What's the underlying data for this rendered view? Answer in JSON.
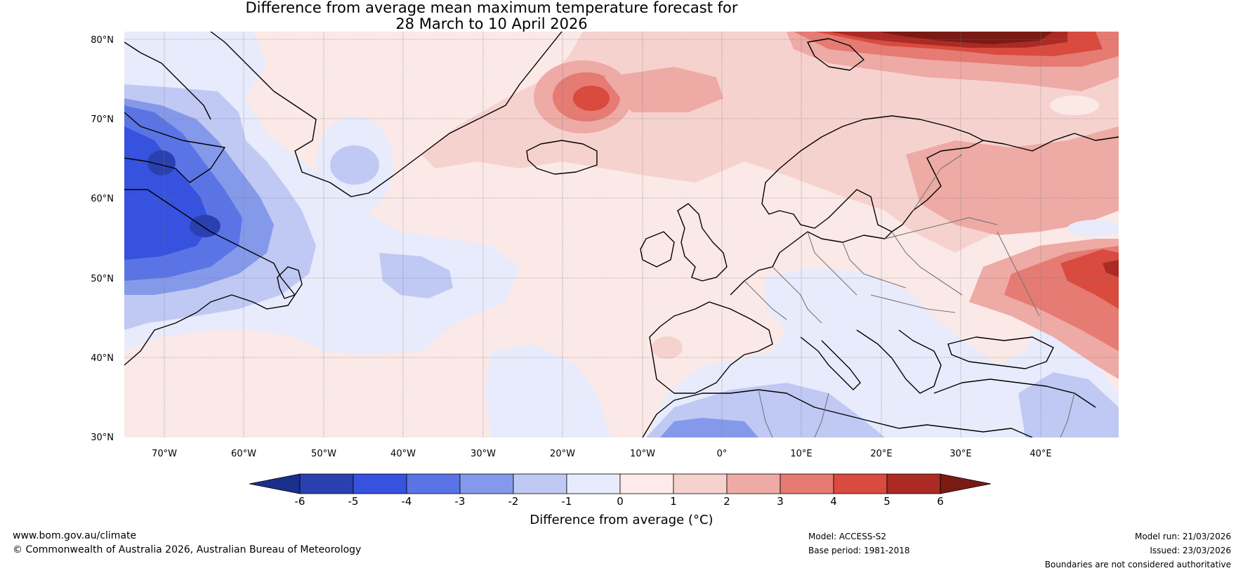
{
  "title": {
    "line1": "Difference from average mean maximum temperature forecast for",
    "line2": "28 March to 10 April 2026"
  },
  "map": {
    "lat_ticks": [
      "80°N",
      "70°N",
      "60°N",
      "50°N",
      "40°N",
      "30°N"
    ],
    "lon_ticks": [
      "70°W",
      "60°W",
      "50°W",
      "40°W",
      "30°W",
      "20°W",
      "10°W",
      "0°",
      "10°E",
      "20°E",
      "30°E",
      "40°E"
    ],
    "ocean_base_color": "#fbe9e7"
  },
  "colorbar": {
    "tick_labels": [
      "-6",
      "-5",
      "-4",
      "-3",
      "-2",
      "-1",
      "0",
      "1",
      "2",
      "3",
      "4",
      "5",
      "6"
    ],
    "colors": [
      "#2a40b0",
      "#3652df",
      "#5b74e5",
      "#8599ea",
      "#c0c9f4",
      "#e8ebfb",
      "#fcebea",
      "#f6d2cf",
      "#eeaaa5",
      "#e57b73",
      "#d94a3f",
      "#ab2a23"
    ],
    "under_color": "#1a2e8c",
    "over_color": "#7a1a15",
    "label": "Difference from average (°C)"
  },
  "footer": {
    "website": "www.bom.gov.au/climate",
    "copyright": "© Commonwealth of Australia 2026, Australian Bureau of Meteorology",
    "model": "Model: ACCESS-S2",
    "base_period": "Base period: 1981-2018",
    "model_run": "Model run: 21/03/2026",
    "issued": "Issued: 23/03/2026",
    "disclaimer": "Boundaries are not considered authoritative"
  }
}
